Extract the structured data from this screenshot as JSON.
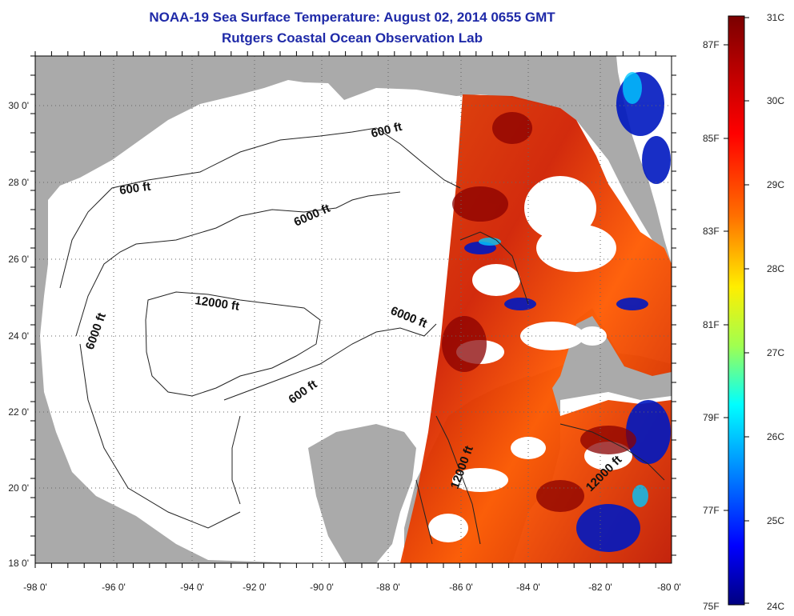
{
  "title": {
    "line1": "NOAA-19 Sea Surface Temperature:  August 02, 2014 0655 GMT",
    "line2": "Rutgers Coastal Ocean Observation Lab"
  },
  "map": {
    "lon_labels": [
      "-98 0'",
      "-96 0'",
      "-94 0'",
      "-92 0'",
      "-90 0'",
      "-88 0'",
      "-86 0'",
      "-84 0'",
      "-82 0'",
      "-80 0'"
    ],
    "lat_labels": [
      "18 0'",
      "20 0'",
      "22 0'",
      "24 0'",
      "26 0'",
      "28 0'",
      "30 0'"
    ],
    "contour_labels": [
      "600 ft",
      "600 ft",
      "6000 ft",
      "12000 ft",
      "6000 ft",
      "6000 ft",
      "600 ft",
      "12000 ft",
      "12000 ft"
    ],
    "colors": {
      "land": "#aaaaaa",
      "no_data": "#ffffff",
      "grid": "#555555"
    }
  },
  "colorbar": {
    "celsius_labels": [
      "31C",
      "30C",
      "29C",
      "28C",
      "27C",
      "26C",
      "25C",
      "24C"
    ],
    "fahrenheit_labels": [
      "87F",
      "85F",
      "83F",
      "81F",
      "79F",
      "77F",
      "75F"
    ],
    "colors": [
      "#800000",
      "#ff0000",
      "#ff8000",
      "#ffff00",
      "#00ffff",
      "#0080ff",
      "#0000ff",
      "#000080"
    ]
  }
}
